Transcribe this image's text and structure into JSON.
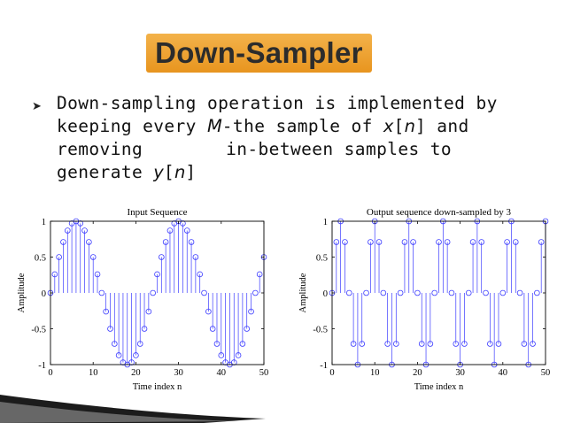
{
  "slide": {
    "title": "Down-Sampler",
    "bullet": {
      "t1": "Down-sampling operation is implemented by keeping every ",
      "m": "M",
      "t2": "-the sample of ",
      "x": "x",
      "b1": "[",
      "n1": "n",
      "b2": "]",
      "t3": " and removing",
      "t4": "in-between samples to generate ",
      "y": "y",
      "b3": "[",
      "n2": "n",
      "b4": "]"
    }
  },
  "chart_data": [
    {
      "type": "stem",
      "title": "Input Sequence",
      "xlabel": "Time index n",
      "ylabel": "Amplitude",
      "xlim": [
        0,
        50
      ],
      "ylim": [
        -1,
        1
      ],
      "xticks": [
        0,
        10,
        20,
        30,
        40,
        50
      ],
      "yticks": [
        1,
        0.5,
        0,
        -0.5,
        -1
      ],
      "x": [
        0,
        1,
        2,
        3,
        4,
        5,
        6,
        7,
        8,
        9,
        10,
        11,
        12,
        13,
        14,
        15,
        16,
        17,
        18,
        19,
        20,
        21,
        22,
        23,
        24,
        25,
        26,
        27,
        28,
        29,
        30,
        31,
        32,
        33,
        34,
        35,
        36,
        37,
        38,
        39,
        40,
        41,
        42,
        43,
        44,
        45,
        46,
        47,
        48,
        49,
        50
      ],
      "y": [
        0,
        0.26,
        0.5,
        0.71,
        0.87,
        0.97,
        1,
        0.97,
        0.87,
        0.71,
        0.5,
        0.26,
        0,
        -0.26,
        -0.5,
        -0.71,
        -0.87,
        -0.97,
        -1,
        -0.97,
        -0.87,
        -0.71,
        -0.5,
        -0.26,
        0,
        0.26,
        0.5,
        0.71,
        0.87,
        0.97,
        1,
        0.97,
        0.87,
        0.71,
        0.5,
        0.26,
        0,
        -0.26,
        -0.5,
        -0.71,
        -0.87,
        -0.97,
        -1,
        -0.97,
        -0.87,
        -0.71,
        -0.5,
        -0.26,
        0,
        0.26,
        0.5
      ],
      "grid": false,
      "color": "#3b3bff"
    },
    {
      "type": "stem",
      "title": "Output sequence down-sampled by 3",
      "xlabel": "Time index n",
      "ylabel": "Amplitude",
      "xlim": [
        0,
        50
      ],
      "ylim": [
        -1,
        1
      ],
      "xticks": [
        0,
        10,
        20,
        30,
        40,
        50
      ],
      "yticks": [
        1,
        0.5,
        0,
        -0.5,
        -1
      ],
      "x": [
        0,
        1,
        2,
        3,
        4,
        5,
        6,
        7,
        8,
        9,
        10,
        11,
        12,
        13,
        14,
        15,
        16,
        17,
        18,
        19,
        20,
        21,
        22,
        23,
        24,
        25,
        26,
        27,
        28,
        29,
        30,
        31,
        32,
        33,
        34,
        35,
        36,
        37,
        38,
        39,
        40,
        41,
        42,
        43,
        44,
        45,
        46,
        47,
        48,
        49,
        50
      ],
      "y": [
        0,
        0.71,
        1,
        0.71,
        0,
        -0.71,
        -1,
        -0.71,
        0,
        0.71,
        1,
        0.71,
        0,
        -0.71,
        -1,
        -0.71,
        0,
        0.71,
        1,
        0.71,
        0,
        -0.71,
        -1,
        -0.71,
        0,
        0.71,
        1,
        0.71,
        0,
        -0.71,
        -1,
        -0.71,
        0,
        0.71,
        1,
        0.71,
        0,
        -0.71,
        -1,
        -0.71,
        0,
        0.71,
        1,
        0.71,
        0,
        -0.71,
        -1,
        -0.71,
        0,
        0.71,
        1
      ],
      "grid": false,
      "color": "#3b3bff"
    }
  ]
}
